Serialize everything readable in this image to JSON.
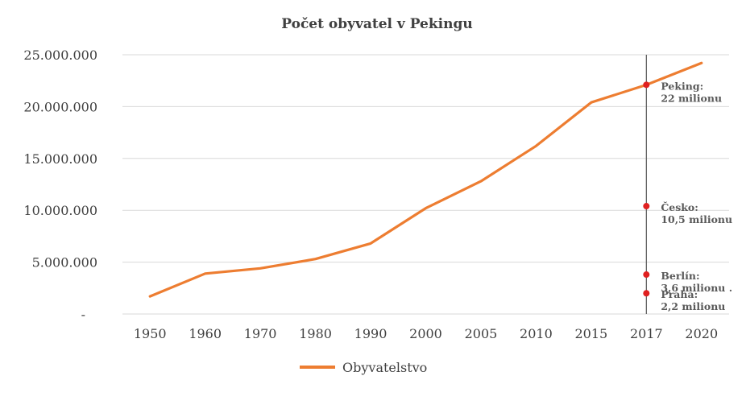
{
  "chart_data": {
    "type": "line",
    "title": "Počet obyvatel v Pekingu",
    "xlabel": "",
    "ylabel": "",
    "categories": [
      "1950",
      "1960",
      "1970",
      "1980",
      "1990",
      "2000",
      "2005",
      "2010",
      "2015",
      "2017",
      "2020"
    ],
    "series": [
      {
        "name": "Obyvatelstvo",
        "color": "#ED7D31",
        "values": [
          1700000,
          3900000,
          4400000,
          5300000,
          6800000,
          10200000,
          12800000,
          16200000,
          20400000,
          22100000,
          24200000
        ]
      }
    ],
    "ylim": [
      0,
      25000000
    ],
    "yticks": [
      {
        "value": 0,
        "label": "-"
      },
      {
        "value": 5000000,
        "label": "5.000.000"
      },
      {
        "value": 10000000,
        "label": "10.000.000"
      },
      {
        "value": 15000000,
        "label": "15.000.000"
      },
      {
        "value": 20000000,
        "label": "20.000.000"
      },
      {
        "value": 25000000,
        "label": "25.000.000"
      }
    ],
    "grid": true,
    "legend_position": "bottom-left",
    "reference_line": {
      "category": "2017",
      "color": "#595959"
    },
    "annotations": [
      {
        "category": "2017",
        "value": 22100000,
        "lines": [
          "Peking:",
          "22 milionu"
        ],
        "color": "#E02020"
      },
      {
        "category": "2017",
        "value": 10400000,
        "lines": [
          "Česko:",
          "10,5 milionu"
        ],
        "color": "#E02020"
      },
      {
        "category": "2017",
        "value": 3800000,
        "lines": [
          "Berlín:",
          "3,6 milionu ."
        ],
        "color": "#E02020"
      },
      {
        "category": "2017",
        "value": 2000000,
        "lines": [
          "Praha:",
          "2,2 milionu"
        ],
        "color": "#E02020"
      }
    ]
  }
}
